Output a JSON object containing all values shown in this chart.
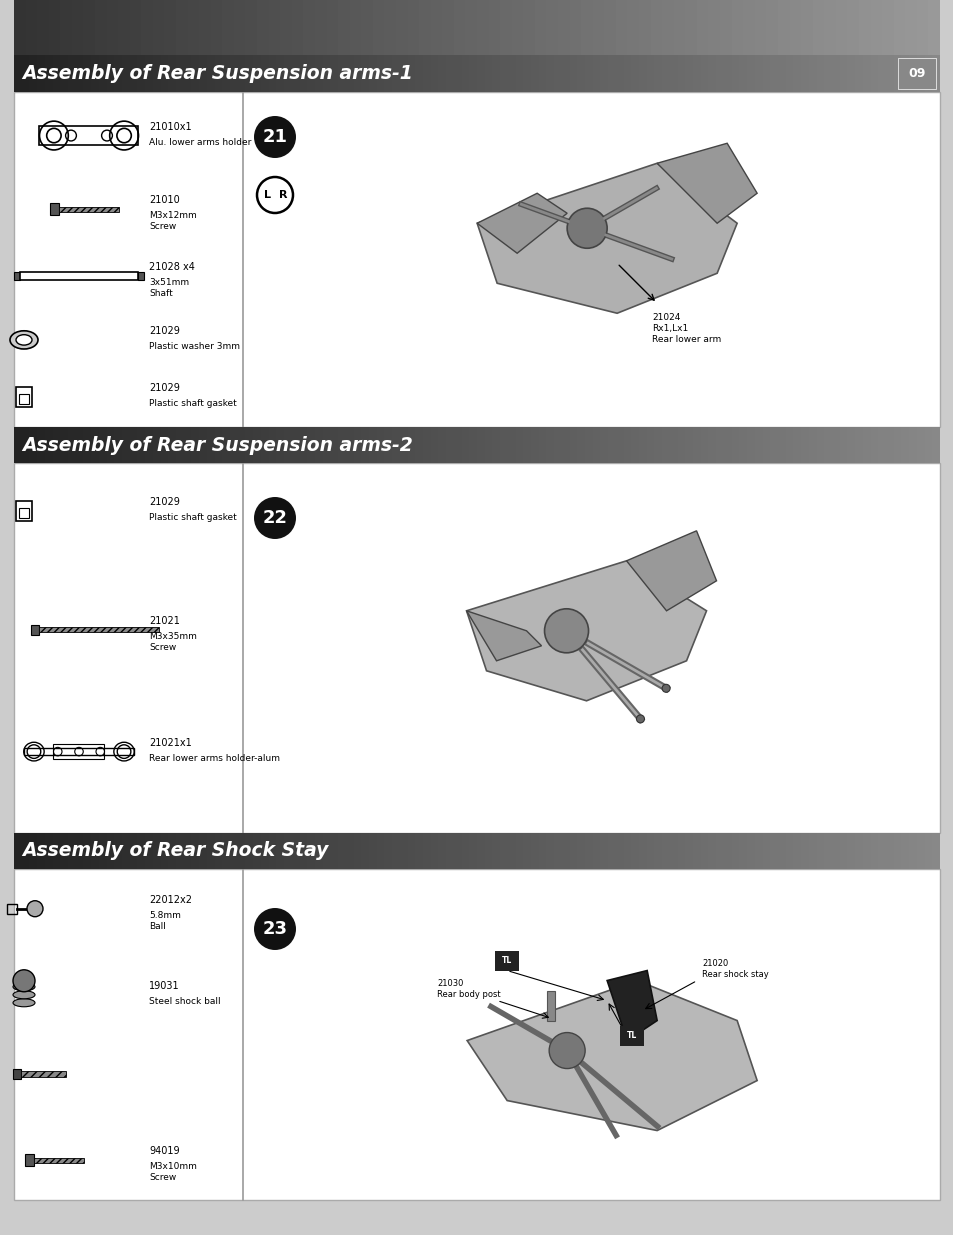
{
  "bg_color": "#ffffff",
  "page_outer_bg": "#cccccc",
  "header_gradient_left": "#2a2a2a",
  "header_gradient_right": "#888888",
  "header_text_color": "#ffffff",
  "body_bg": "#ffffff",
  "divider_color": "#aaaaaa",
  "border_color": "#bbbbbb",
  "page_number": "09",
  "sections": [
    {
      "title": "Assembly of Rear Suspension arms-1",
      "step": "21",
      "has_lr": true,
      "parts": [
        {
          "id": "21010x1",
          "label": "Alu. lower arms holder",
          "shape": "arm_holder"
        },
        {
          "id": "21010",
          "label": "M3x12mm\nScrew",
          "shape": "short_screw"
        },
        {
          "id": "21028 x4",
          "label": "3x51mm\nShaft",
          "shape": "long_shaft"
        },
        {
          "id": "21029",
          "label": "Plastic washer 3mm",
          "shape": "washer"
        },
        {
          "id": "21029",
          "label": "Plastic shaft gasket",
          "shape": "gasket"
        }
      ],
      "diag_label1": "21024",
      "diag_label2": "Rx1,Lx1",
      "diag_label3": "Rear lower arm"
    },
    {
      "title": "Assembly of Rear Suspension arms-2",
      "step": "22",
      "has_lr": false,
      "parts": [
        {
          "id": "21029",
          "label": "Plastic shaft gasket",
          "shape": "gasket"
        },
        {
          "id": "21021",
          "label": "M3x35mm\nScrew",
          "shape": "long_screw"
        },
        {
          "id": "21021x1",
          "label": "Rear lower arms holder-alum",
          "shape": "arm_holder2"
        }
      ],
      "diag_label1": "",
      "diag_label2": "",
      "diag_label3": ""
    },
    {
      "title": "Assembly of Rear Shock Stay",
      "step": "23",
      "has_lr": false,
      "parts": [
        {
          "id": "22012x2",
          "label": "5.8mm\nBall",
          "shape": "ball"
        },
        {
          "id": "19031",
          "label": "Steel shock ball",
          "shape": "shock_ball"
        },
        {
          "id": "",
          "label": "",
          "shape": "small_screw"
        },
        {
          "id": "94019",
          "label": "M3x10mm\nScrew",
          "shape": "med_screw"
        }
      ],
      "diag_label1": "21020",
      "diag_label2": "Rear shock stay",
      "diag_label3": "",
      "diag_label4": "21030",
      "diag_label5": "Rear body post"
    }
  ]
}
